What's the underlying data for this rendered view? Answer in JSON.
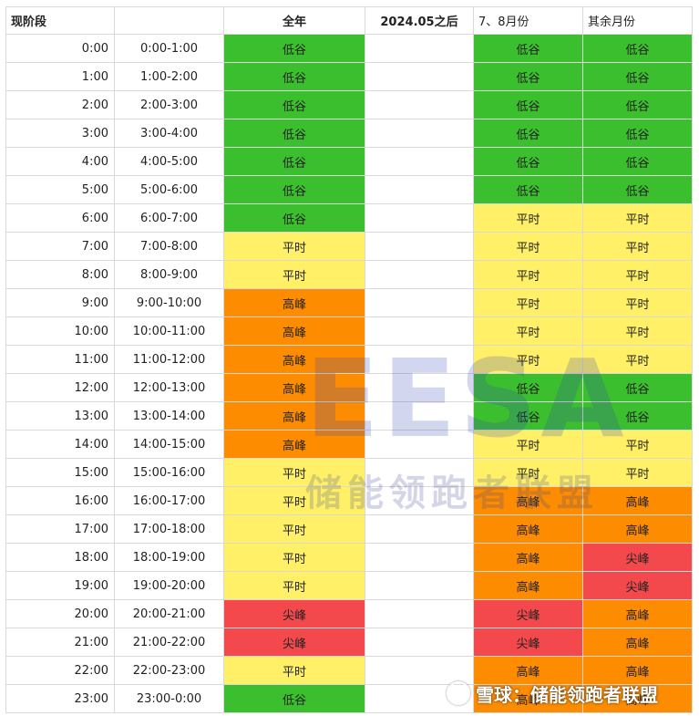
{
  "headers": [
    "现阶段",
    "",
    "全年",
    "2024.05之后",
    "7、8月份",
    "其余月份"
  ],
  "rows": [
    {
      "time": "0:00",
      "range": "0:00-1:00",
      "all_year": "低谷",
      "after_2024_05": "",
      "jul_aug": "低谷",
      "other_months": "低谷"
    },
    {
      "time": "1:00",
      "range": "1:00-2:00",
      "all_year": "低谷",
      "after_2024_05": "",
      "jul_aug": "低谷",
      "other_months": "低谷"
    },
    {
      "time": "2:00",
      "range": "2:00-3:00",
      "all_year": "低谷",
      "after_2024_05": "",
      "jul_aug": "低谷",
      "other_months": "低谷"
    },
    {
      "time": "3:00",
      "range": "3:00-4:00",
      "all_year": "低谷",
      "after_2024_05": "",
      "jul_aug": "低谷",
      "other_months": "低谷"
    },
    {
      "time": "4:00",
      "range": "4:00-5:00",
      "all_year": "低谷",
      "after_2024_05": "",
      "jul_aug": "低谷",
      "other_months": "低谷"
    },
    {
      "time": "5:00",
      "range": "5:00-6:00",
      "all_year": "低谷",
      "after_2024_05": "",
      "jul_aug": "低谷",
      "other_months": "低谷"
    },
    {
      "time": "6:00",
      "range": "6:00-7:00",
      "all_year": "低谷",
      "after_2024_05": "",
      "jul_aug": "平时",
      "other_months": "平时"
    },
    {
      "time": "7:00",
      "range": "7:00-8:00",
      "all_year": "平时",
      "after_2024_05": "",
      "jul_aug": "平时",
      "other_months": "平时"
    },
    {
      "time": "8:00",
      "range": "8:00-9:00",
      "all_year": "平时",
      "after_2024_05": "",
      "jul_aug": "平时",
      "other_months": "平时"
    },
    {
      "time": "9:00",
      "range": "9:00-10:00",
      "all_year": "高峰",
      "after_2024_05": "",
      "jul_aug": "平时",
      "other_months": "平时"
    },
    {
      "time": "10:00",
      "range": "10:00-11:00",
      "all_year": "高峰",
      "after_2024_05": "",
      "jul_aug": "平时",
      "other_months": "平时"
    },
    {
      "time": "11:00",
      "range": "11:00-12:00",
      "all_year": "高峰",
      "after_2024_05": "",
      "jul_aug": "平时",
      "other_months": "平时"
    },
    {
      "time": "12:00",
      "range": "12:00-13:00",
      "all_year": "高峰",
      "after_2024_05": "",
      "jul_aug": "低谷",
      "other_months": "低谷"
    },
    {
      "time": "13:00",
      "range": "13:00-14:00",
      "all_year": "高峰",
      "after_2024_05": "",
      "jul_aug": "低谷",
      "other_months": "低谷"
    },
    {
      "time": "14:00",
      "range": "14:00-15:00",
      "all_year": "高峰",
      "after_2024_05": "",
      "jul_aug": "平时",
      "other_months": "平时"
    },
    {
      "time": "15:00",
      "range": "15:00-16:00",
      "all_year": "平时",
      "after_2024_05": "",
      "jul_aug": "平时",
      "other_months": "平时"
    },
    {
      "time": "16:00",
      "range": "16:00-17:00",
      "all_year": "平时",
      "after_2024_05": "",
      "jul_aug": "高峰",
      "other_months": "高峰"
    },
    {
      "time": "17:00",
      "range": "17:00-18:00",
      "all_year": "平时",
      "after_2024_05": "",
      "jul_aug": "高峰",
      "other_months": "高峰"
    },
    {
      "time": "18:00",
      "range": "18:00-19:00",
      "all_year": "平时",
      "after_2024_05": "",
      "jul_aug": "高峰",
      "other_months": "尖峰"
    },
    {
      "time": "19:00",
      "range": "19:00-20:00",
      "all_year": "平时",
      "after_2024_05": "",
      "jul_aug": "高峰",
      "other_months": "尖峰"
    },
    {
      "time": "20:00",
      "range": "20:00-21:00",
      "all_year": "尖峰",
      "after_2024_05": "",
      "jul_aug": "尖峰",
      "other_months": "高峰"
    },
    {
      "time": "21:00",
      "range": "21:00-22:00",
      "all_year": "尖峰",
      "after_2024_05": "",
      "jul_aug": "尖峰",
      "other_months": "高峰"
    },
    {
      "time": "22:00",
      "range": "22:00-23:00",
      "all_year": "平时",
      "after_2024_05": "",
      "jul_aug": "高峰",
      "other_months": "高峰"
    },
    {
      "time": "23:00",
      "range": "23:00-0:00",
      "all_year": "低谷",
      "after_2024_05": "",
      "jul_aug": "高峰",
      "other_months": "高峰"
    }
  ],
  "level_colors": {
    "低谷": "#3cbf2e",
    "平时": "#fff068",
    "高峰": "#fd8c00",
    "尖峰": "#f4494c"
  },
  "watermark": {
    "main": "EESA",
    "sub": "储能领跑者联盟"
  },
  "credit": {
    "text": "雪球：储能领跑者联盟",
    "logo_icon": "snowball-logo-icon"
  }
}
